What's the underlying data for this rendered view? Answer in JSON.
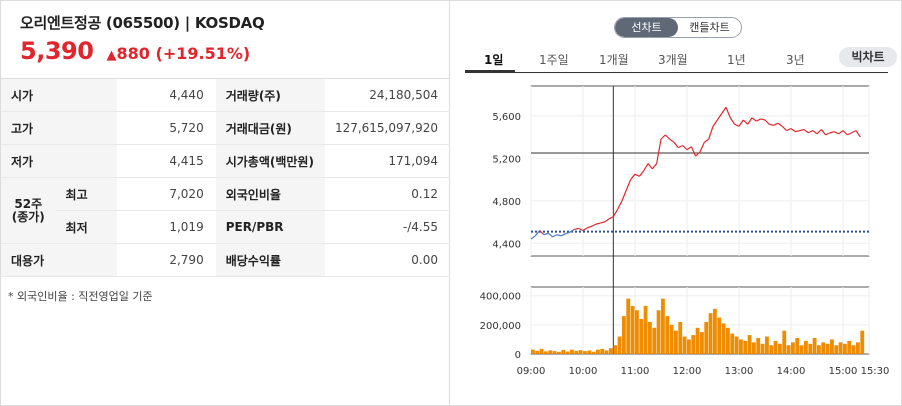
{
  "header": {
    "title": "오리엔트정공 (065500) | KOSDAQ",
    "price": "5,390",
    "change_symbol": "▲",
    "change_value": "880",
    "change_pct": "(+19.51%)",
    "up_color": "#e0262c"
  },
  "info_table": {
    "rows": [
      {
        "l1": "시가",
        "v1": "4,440",
        "l2": "거래량(주)",
        "v2": "24,180,504"
      },
      {
        "l1": "고가",
        "v1": "5,720",
        "l2": "거래대금(원)",
        "v2": "127,615,097,920"
      },
      {
        "l1": "저가",
        "v1": "4,415",
        "l2": "시가총액(백만원)",
        "v2": "171,094"
      },
      {
        "l1": "52주\n(종가)",
        "sub": "최고",
        "v1": "7,020",
        "l2": "외국인비율",
        "v2": "0.12"
      },
      {
        "sub": "최저",
        "v1": "1,019",
        "l2": "PER/PBR",
        "v2": "-/4.55"
      },
      {
        "l1": "대용가",
        "v1": "2,790",
        "l2": "배당수익률",
        "v2": "0.00"
      }
    ]
  },
  "note": "* 외국인비율 : 직전영업일 기준",
  "chart_toggle": {
    "line": "선차트",
    "candle": "캔들차트"
  },
  "period_tabs": [
    "1일",
    "1주일",
    "1개월",
    "3개월",
    "1년",
    "3년"
  ],
  "big_chart_label": "빅차트",
  "chart_data": {
    "type": "line",
    "price_axis": {
      "ticks": [
        "5,600",
        "5,200",
        "4,800",
        "4,400"
      ],
      "values": [
        5600,
        5200,
        4800,
        4400
      ],
      "ylim": [
        4280,
        5880
      ]
    },
    "volume_axis": {
      "ticks": [
        "400,000",
        "200,000",
        "0"
      ],
      "values": [
        400000,
        200000,
        0
      ],
      "ylim": [
        0,
        460000
      ]
    },
    "x_ticks": [
      "09:00",
      "10:00",
      "11:00",
      "12:00",
      "13:00",
      "14:00",
      "15:00",
      "15:30"
    ],
    "prev_close": 4510,
    "cursor_time": "10:35",
    "cursor_price": 5250,
    "line_up_color": "#e0262c",
    "line_down_color": "#4a78c2",
    "volume_color": "#f08c00",
    "price_series": [
      [
        "09:00",
        4440
      ],
      [
        "09:05",
        4470
      ],
      [
        "09:10",
        4520
      ],
      [
        "09:15",
        4480
      ],
      [
        "09:20",
        4495
      ],
      [
        "09:25",
        4460
      ],
      [
        "09:30",
        4480
      ],
      [
        "09:35",
        4470
      ],
      [
        "09:40",
        4490
      ],
      [
        "09:45",
        4505
      ],
      [
        "09:50",
        4530
      ],
      [
        "09:55",
        4540
      ],
      [
        "10:00",
        4520
      ],
      [
        "10:05",
        4545
      ],
      [
        "10:10",
        4560
      ],
      [
        "10:15",
        4580
      ],
      [
        "10:20",
        4590
      ],
      [
        "10:25",
        4600
      ],
      [
        "10:30",
        4630
      ],
      [
        "10:35",
        4650
      ],
      [
        "10:40",
        4720
      ],
      [
        "10:45",
        4800
      ],
      [
        "10:50",
        4900
      ],
      [
        "10:55",
        5000
      ],
      [
        "11:00",
        5050
      ],
      [
        "11:05",
        5030
      ],
      [
        "11:10",
        5080
      ],
      [
        "11:15",
        5150
      ],
      [
        "11:20",
        5100
      ],
      [
        "11:25",
        5150
      ],
      [
        "11:30",
        5380
      ],
      [
        "11:35",
        5420
      ],
      [
        "11:40",
        5380
      ],
      [
        "11:45",
        5350
      ],
      [
        "11:50",
        5300
      ],
      [
        "11:55",
        5320
      ],
      [
        "12:00",
        5280
      ],
      [
        "12:05",
        5310
      ],
      [
        "12:10",
        5220
      ],
      [
        "12:15",
        5260
      ],
      [
        "12:20",
        5350
      ],
      [
        "12:25",
        5380
      ],
      [
        "12:30",
        5500
      ],
      [
        "12:35",
        5560
      ],
      [
        "12:40",
        5620
      ],
      [
        "12:45",
        5680
      ],
      [
        "12:50",
        5580
      ],
      [
        "12:55",
        5520
      ],
      [
        "13:00",
        5500
      ],
      [
        "13:05",
        5560
      ],
      [
        "13:10",
        5520
      ],
      [
        "13:15",
        5580
      ],
      [
        "13:20",
        5550
      ],
      [
        "13:25",
        5570
      ],
      [
        "13:30",
        5560
      ],
      [
        "13:35",
        5520
      ],
      [
        "13:40",
        5510
      ],
      [
        "13:45",
        5530
      ],
      [
        "13:50",
        5500
      ],
      [
        "13:55",
        5460
      ],
      [
        "14:00",
        5480
      ],
      [
        "14:05",
        5450
      ],
      [
        "14:10",
        5460
      ],
      [
        "14:15",
        5470
      ],
      [
        "14:20",
        5440
      ],
      [
        "14:25",
        5460
      ],
      [
        "14:30",
        5430
      ],
      [
        "14:35",
        5470
      ],
      [
        "14:40",
        5420
      ],
      [
        "14:45",
        5440
      ],
      [
        "14:50",
        5450
      ],
      [
        "14:55",
        5430
      ],
      [
        "15:00",
        5460
      ],
      [
        "15:05",
        5420
      ],
      [
        "15:10",
        5440
      ],
      [
        "15:15",
        5460
      ],
      [
        "15:20",
        5400
      ]
    ],
    "volume_series": [
      [
        "09:00",
        30000
      ],
      [
        "09:05",
        22000
      ],
      [
        "09:10",
        35000
      ],
      [
        "09:15",
        18000
      ],
      [
        "09:20",
        25000
      ],
      [
        "09:25",
        20000
      ],
      [
        "09:30",
        15000
      ],
      [
        "09:35",
        28000
      ],
      [
        "09:40",
        17000
      ],
      [
        "09:45",
        30000
      ],
      [
        "09:50",
        22000
      ],
      [
        "09:55",
        26000
      ],
      [
        "10:00",
        20000
      ],
      [
        "10:05",
        24000
      ],
      [
        "10:10",
        15000
      ],
      [
        "10:15",
        30000
      ],
      [
        "10:20",
        35000
      ],
      [
        "10:25",
        25000
      ],
      [
        "10:30",
        40000
      ],
      [
        "10:35",
        60000
      ],
      [
        "10:40",
        120000
      ],
      [
        "10:45",
        260000
      ],
      [
        "10:50",
        380000
      ],
      [
        "10:55",
        330000
      ],
      [
        "11:00",
        300000
      ],
      [
        "11:05",
        240000
      ],
      [
        "11:10",
        330000
      ],
      [
        "11:15",
        220000
      ],
      [
        "11:20",
        180000
      ],
      [
        "11:25",
        300000
      ],
      [
        "11:30",
        380000
      ],
      [
        "11:35",
        260000
      ],
      [
        "11:40",
        200000
      ],
      [
        "11:45",
        160000
      ],
      [
        "11:50",
        220000
      ],
      [
        "11:55",
        120000
      ],
      [
        "12:00",
        100000
      ],
      [
        "12:05",
        130000
      ],
      [
        "12:10",
        180000
      ],
      [
        "12:15",
        150000
      ],
      [
        "12:20",
        220000
      ],
      [
        "12:25",
        280000
      ],
      [
        "12:30",
        310000
      ],
      [
        "12:35",
        250000
      ],
      [
        "12:40",
        210000
      ],
      [
        "12:45",
        180000
      ],
      [
        "12:50",
        140000
      ],
      [
        "12:55",
        120000
      ],
      [
        "13:00",
        100000
      ],
      [
        "13:05",
        90000
      ],
      [
        "13:10",
        130000
      ],
      [
        "13:15",
        80000
      ],
      [
        "13:20",
        110000
      ],
      [
        "13:25",
        70000
      ],
      [
        "13:30",
        120000
      ],
      [
        "13:35",
        60000
      ],
      [
        "13:40",
        90000
      ],
      [
        "13:45",
        70000
      ],
      [
        "13:50",
        160000
      ],
      [
        "13:55",
        60000
      ],
      [
        "14:00",
        80000
      ],
      [
        "14:05",
        110000
      ],
      [
        "14:10",
        60000
      ],
      [
        "14:15",
        90000
      ],
      [
        "14:20",
        70000
      ],
      [
        "14:25",
        110000
      ],
      [
        "14:30",
        60000
      ],
      [
        "14:35",
        80000
      ],
      [
        "14:40",
        70000
      ],
      [
        "14:45",
        100000
      ],
      [
        "14:50",
        60000
      ],
      [
        "14:55",
        80000
      ],
      [
        "15:00",
        70000
      ],
      [
        "15:05",
        90000
      ],
      [
        "15:10",
        60000
      ],
      [
        "15:15",
        80000
      ],
      [
        "15:20",
        160000
      ]
    ]
  }
}
